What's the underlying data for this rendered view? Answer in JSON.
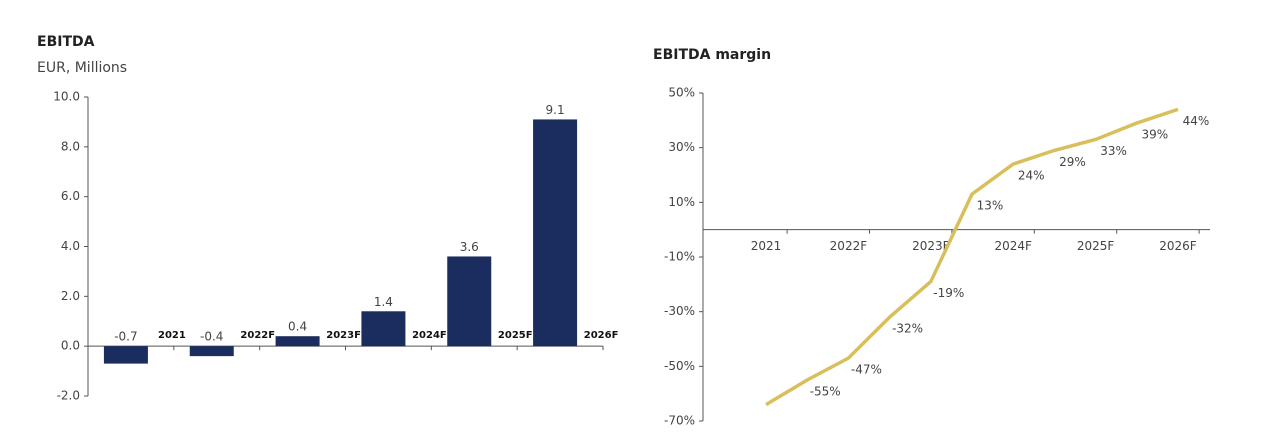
{
  "chart_data": [
    {
      "type": "bar",
      "title": "EBITDA",
      "subtitle": "EUR, Millions",
      "categories": [
        "2021",
        "2022F",
        "2023F",
        "2024F",
        "2025F",
        "2026F"
      ],
      "values": [
        -0.7,
        -0.4,
        0.4,
        1.4,
        3.6,
        9.1
      ],
      "color": "#1b2d5e",
      "ylim": [
        -2,
        10
      ],
      "yticks": [
        {
          "value": -2,
          "label": "-2.0"
        },
        {
          "value": 0,
          "label": "0.0"
        },
        {
          "value": 2,
          "label": "2.0"
        },
        {
          "value": 4,
          "label": "4.0"
        },
        {
          "value": 6,
          "label": "6.0"
        },
        {
          "value": 8,
          "label": "8.0"
        },
        {
          "value": 10,
          "label": "10.0"
        }
      ]
    },
    {
      "type": "line",
      "title": "EBITDA margin",
      "categories": [
        "2021",
        null,
        "2022F",
        null,
        "2023F",
        null,
        "2024F",
        null,
        "2025F",
        null,
        "2026F"
      ],
      "values": [
        -64,
        -55,
        -47,
        -32,
        -19,
        13,
        24,
        29,
        33,
        39,
        44
      ],
      "value_labels": [
        null,
        "-55%",
        "-47%",
        "-32%",
        "-19%",
        "13%",
        "24%",
        "29%",
        "33%",
        "39%",
        "44%"
      ],
      "color": "#d8bf5c",
      "ylim": [
        -70,
        50
      ],
      "yticks": [
        {
          "value": -70,
          "label": "-70%"
        },
        {
          "value": -50,
          "label": "-50%"
        },
        {
          "value": -30,
          "label": "-30%"
        },
        {
          "value": -10,
          "label": "-10%"
        },
        {
          "value": 10,
          "label": "10%"
        },
        {
          "value": 30,
          "label": "30%"
        },
        {
          "value": 50,
          "label": "50%"
        }
      ]
    }
  ]
}
